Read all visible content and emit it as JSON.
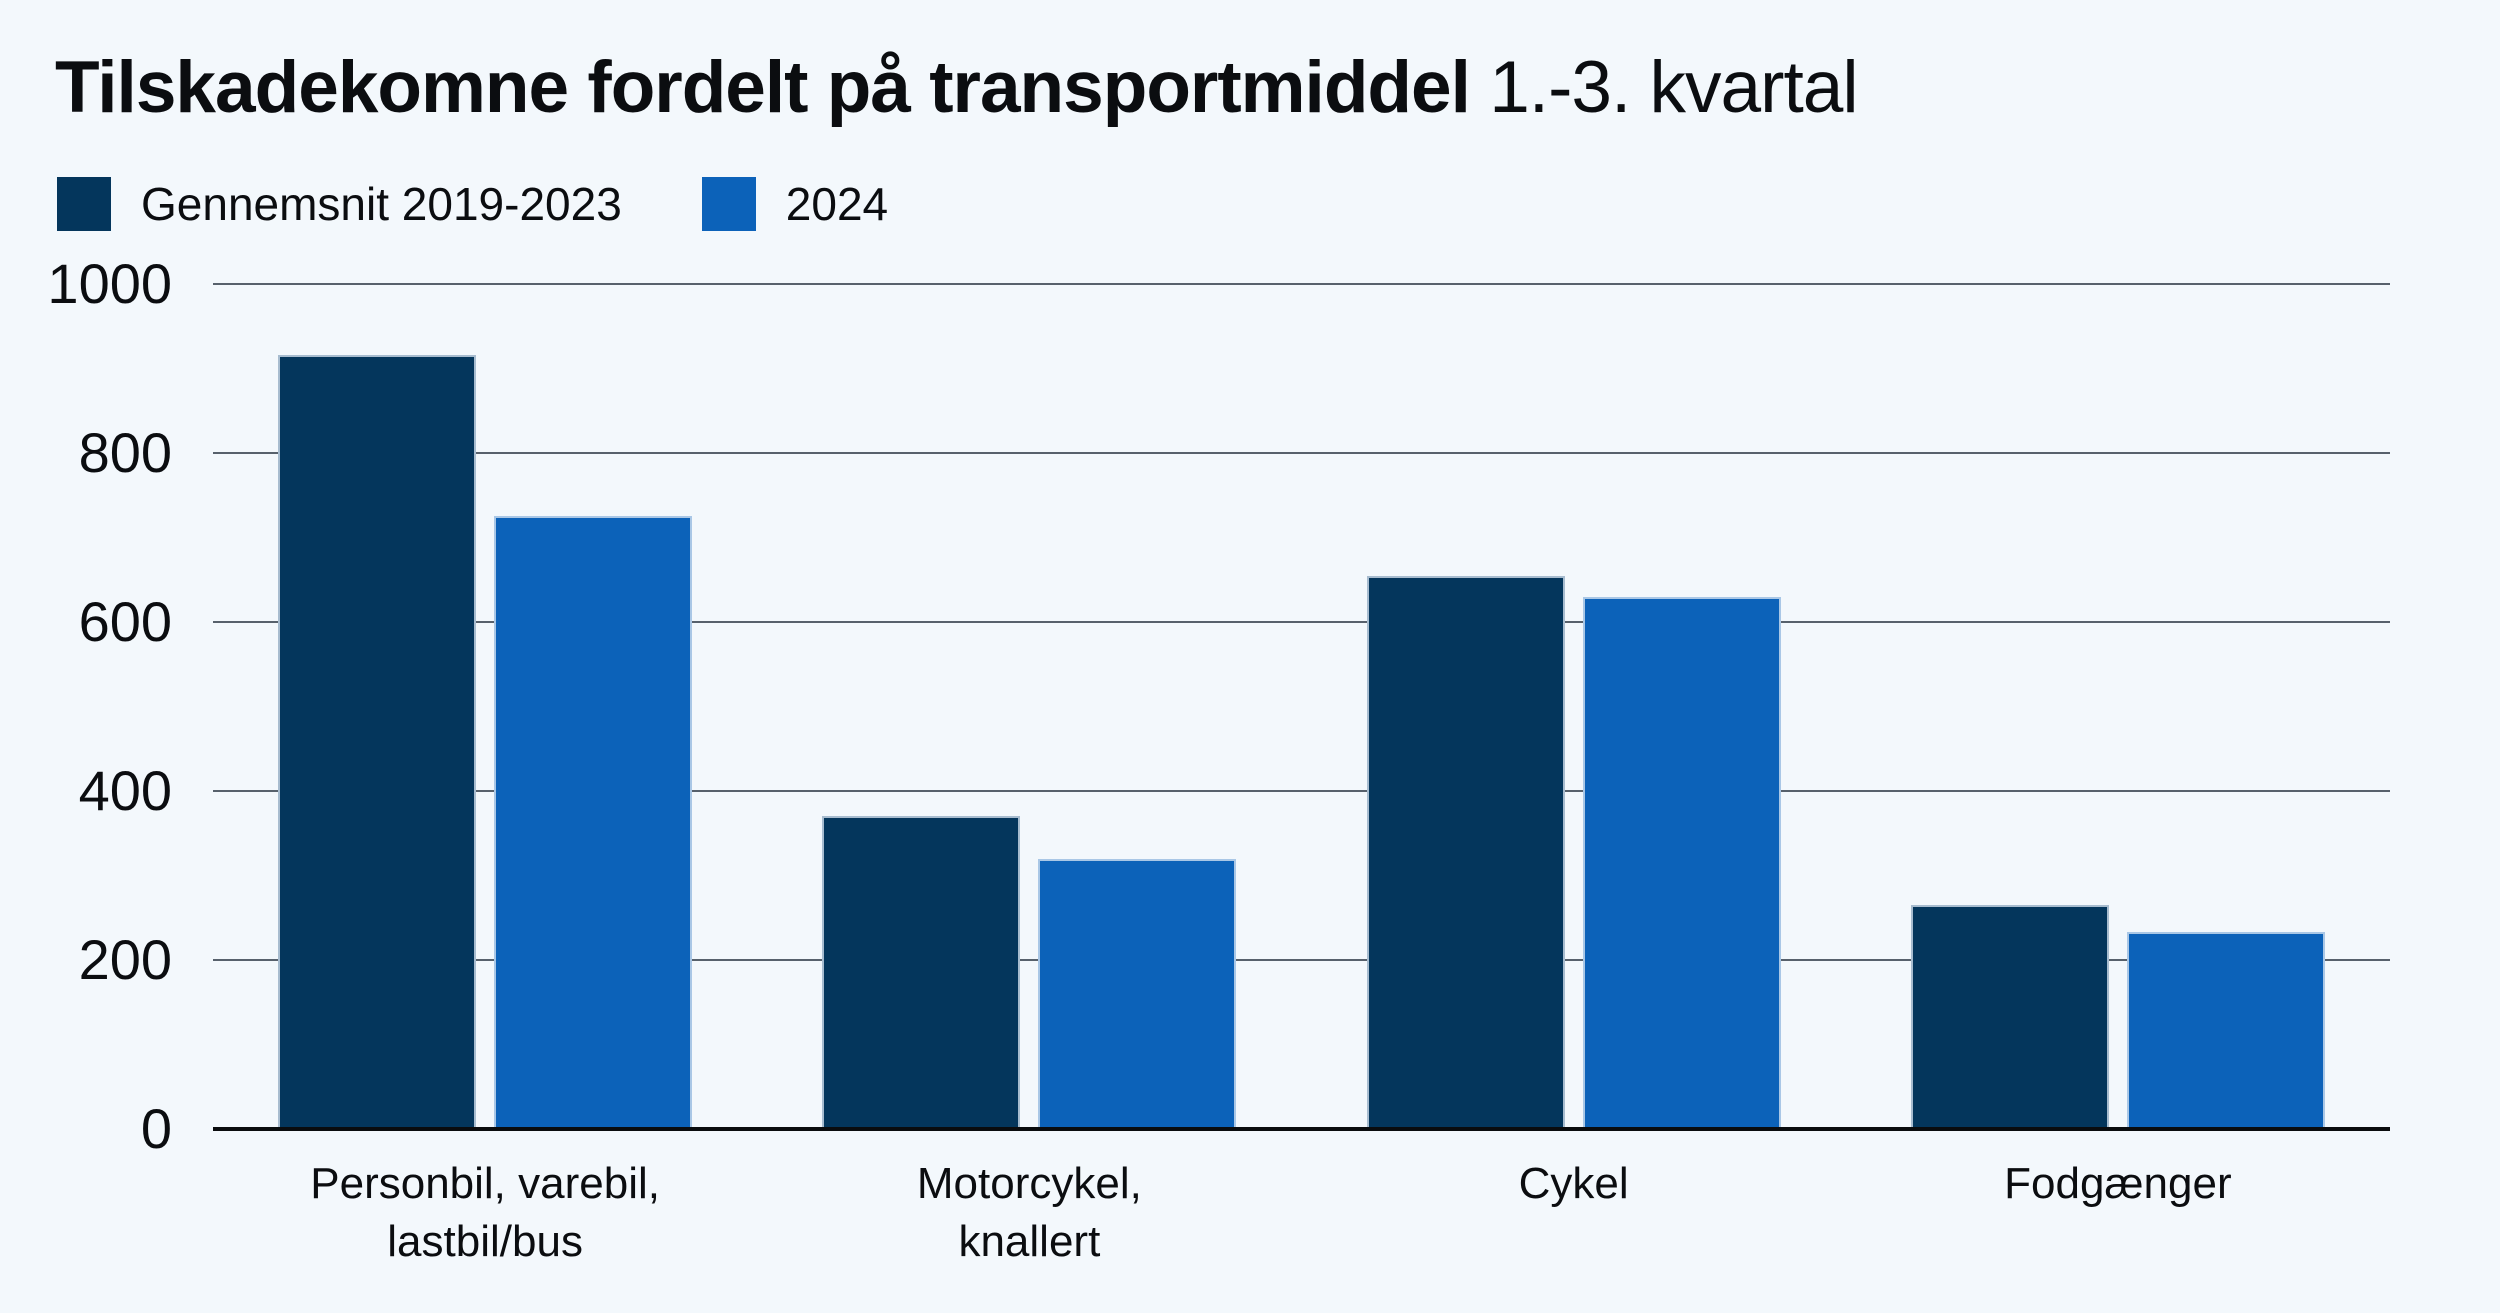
{
  "title": {
    "main": "Tilskadekomne fordelt på transportmiddel",
    "suffix": " 1.-3. kvartal"
  },
  "legend": [
    {
      "label": "Gennemsnit 2019-2023",
      "color": "#04365c"
    },
    {
      "label": "2024",
      "color": "#0c62b9"
    }
  ],
  "colors": {
    "background": "#f3f8fc",
    "gridline": "#57616c",
    "zero_axis": "#0a0c0e",
    "text": "#0b0d10",
    "series_dark": "#04365c",
    "series_blue": "#0c62b9"
  },
  "chart_data": {
    "type": "bar",
    "title": "Tilskadekomne fordelt på transportmiddel 1.-3. kvartal",
    "categories": [
      "Personbil, varebil, lastbil/bus",
      "Motorcykel, knallert",
      "Cykel",
      "Fodgænger"
    ],
    "category_lines": [
      [
        "Personbil, varebil,",
        "lastbil/bus"
      ],
      [
        "Motorcykel,",
        "knallert"
      ],
      [
        "Cykel"
      ],
      [
        "Fodgænger"
      ]
    ],
    "series": [
      {
        "name": "Gennemsnit 2019-2023",
        "color": "#04365c",
        "values": [
          916,
          370,
          654,
          265
        ]
      },
      {
        "name": "2024",
        "color": "#0c62b9",
        "values": [
          725,
          320,
          629,
          233
        ]
      }
    ],
    "xlabel": "",
    "ylabel": "",
    "ylim": [
      0,
      1000
    ],
    "yticks": [
      0,
      200,
      400,
      600,
      800,
      1000
    ],
    "grid": true,
    "legend_position": "top-left"
  }
}
